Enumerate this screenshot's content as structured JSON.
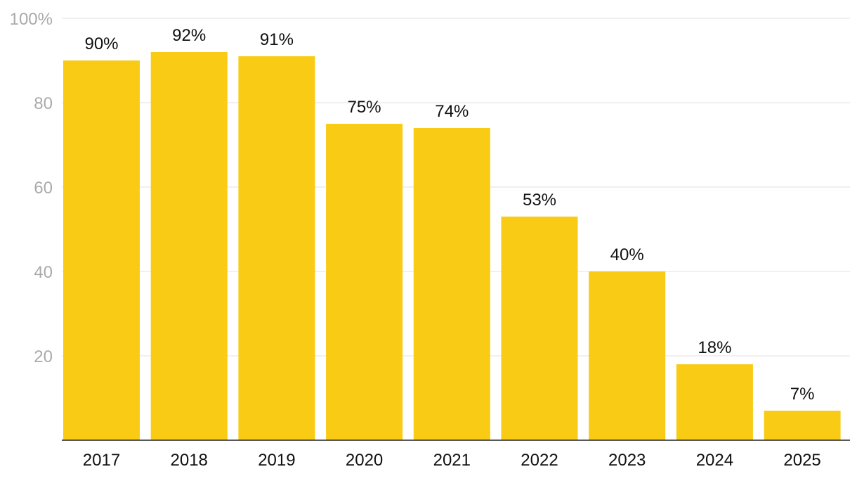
{
  "chart_data": {
    "type": "bar",
    "title": "",
    "xlabel": "",
    "ylabel": "",
    "categories": [
      "2017",
      "2018",
      "2019",
      "2020",
      "2021",
      "2022",
      "2023",
      "2024",
      "2025"
    ],
    "values": [
      90,
      92,
      91,
      75,
      74,
      53,
      40,
      18,
      7
    ],
    "data_labels": [
      "90%",
      "92%",
      "91%",
      "75%",
      "74%",
      "53%",
      "40%",
      "18%",
      "7%"
    ],
    "ylim": [
      0,
      100
    ],
    "y_ticks": [
      20,
      40,
      60,
      80,
      100
    ],
    "y_tick_labels": [
      "20",
      "40",
      "60",
      "80",
      "100%"
    ],
    "grid": true,
    "legend": "none",
    "colors": {
      "bar": "#F9CB14",
      "grid": "#e2e2e2",
      "axis": "#222222",
      "y_tick_text": "#aaaaaa",
      "text": "#111111"
    }
  }
}
